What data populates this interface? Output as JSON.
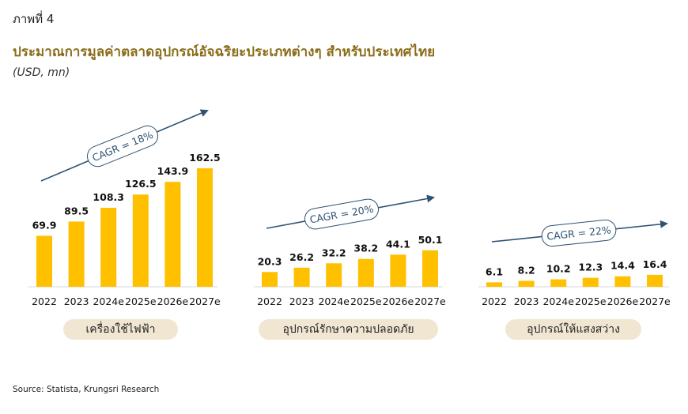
{
  "header": {
    "figure_label": "ภาพที่ 4",
    "title": "ประมาณการมูลค่าตลาดอุปกรณ์อัจฉริยะประเภทต่างๆ สำหรับประเทศไทย",
    "unit": "(USD, mn)"
  },
  "source": "Source: Statista, Krungsri Research",
  "colors": {
    "bar": "#ffc000",
    "arrow": "#2e5373",
    "pill": "#f1e6d2",
    "cagr_text": "#2e5373"
  },
  "chart_data": [
    {
      "type": "bar",
      "group_label": "เครื่องใช้ไฟฟ้า",
      "categories": [
        "2022",
        "2023",
        "2024e",
        "2025e",
        "2026e",
        "2027e"
      ],
      "values": [
        69.9,
        89.5,
        108.3,
        126.5,
        143.9,
        162.5
      ],
      "labels": [
        "69.9",
        "89.5",
        "108.3",
        "126.5",
        "143.9",
        "162.5"
      ],
      "annotation": "CAGR = 18%"
    },
    {
      "type": "bar",
      "group_label": "อุปกรณ์รักษาความปลอดภัย",
      "categories": [
        "2022",
        "2023",
        "2024e",
        "2025e",
        "2026e",
        "2027e"
      ],
      "values": [
        20.3,
        26.2,
        32.2,
        38.2,
        44.1,
        50.1
      ],
      "labels": [
        "20.3",
        "26.2",
        "32.2",
        "38.2",
        "44.1",
        "50.1"
      ],
      "annotation": "CAGR = 20%"
    },
    {
      "type": "bar",
      "group_label": "อุปกรณ์ให้แสงสว่าง",
      "categories": [
        "2022",
        "2023",
        "2024e",
        "2025e",
        "2026e",
        "2027e"
      ],
      "values": [
        6.1,
        8.2,
        10.2,
        12.3,
        14.4,
        16.4
      ],
      "labels": [
        "6.1",
        "8.2",
        "10.2",
        "12.3",
        "14.4",
        "16.4"
      ],
      "annotation": "CAGR = 22%"
    }
  ]
}
